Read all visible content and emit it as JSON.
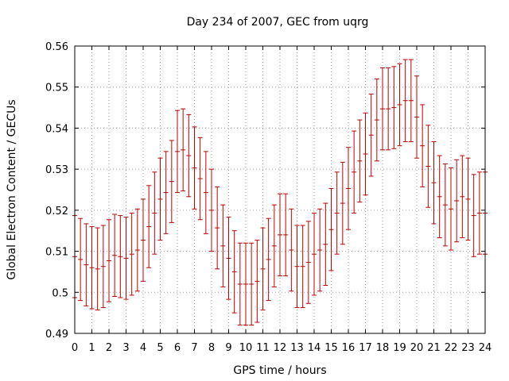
{
  "chart_data": {
    "type": "scatter",
    "title": "Day 234 of 2007, GEC from uqrg",
    "xlabel": "GPS time / hours",
    "ylabel": "Global Electron Content / GECUs",
    "xlim": [
      0,
      24
    ],
    "ylim": [
      0.49,
      0.56
    ],
    "xticks": [
      0,
      1,
      2,
      3,
      4,
      5,
      6,
      7,
      8,
      9,
      10,
      11,
      12,
      13,
      14,
      15,
      16,
      17,
      18,
      19,
      20,
      21,
      22,
      23,
      24
    ],
    "yticks": [
      0.49,
      0.5,
      0.51,
      0.52,
      0.53,
      0.54,
      0.55,
      0.56
    ],
    "xtick_labels": [
      "0",
      "1",
      "2",
      "3",
      "4",
      "5",
      "6",
      "7",
      "8",
      "9",
      "10",
      "11",
      "12",
      "13",
      "14",
      "15",
      "16",
      "17",
      "18",
      "19",
      "20",
      "21",
      "22",
      "23",
      "24"
    ],
    "ytick_labels": [
      "0.49",
      "0.5",
      "0.51",
      "0.52",
      "0.53",
      "0.54",
      "0.55",
      "0.56"
    ],
    "grid": true,
    "colors": {
      "series": "#c00000",
      "grid": "#a0a0a0"
    },
    "series": [
      {
        "error": 0.01,
        "points": [
          [
            0.0,
            0.5087
          ],
          [
            0.333,
            0.508
          ],
          [
            0.667,
            0.5067
          ],
          [
            1.0,
            0.506
          ],
          [
            1.333,
            0.5057
          ],
          [
            1.667,
            0.5063
          ],
          [
            2.0,
            0.5077
          ],
          [
            2.333,
            0.509
          ],
          [
            2.667,
            0.5087
          ],
          [
            3.0,
            0.5083
          ],
          [
            3.333,
            0.5093
          ],
          [
            3.667,
            0.5103
          ],
          [
            4.0,
            0.5127
          ],
          [
            4.333,
            0.516
          ],
          [
            4.667,
            0.5193
          ],
          [
            5.0,
            0.5227
          ],
          [
            5.333,
            0.5243
          ],
          [
            5.667,
            0.527
          ],
          [
            6.0,
            0.5343
          ],
          [
            6.333,
            0.5347
          ],
          [
            6.667,
            0.5333
          ],
          [
            7.0,
            0.5303
          ],
          [
            7.333,
            0.5277
          ],
          [
            7.667,
            0.5243
          ],
          [
            8.0,
            0.52
          ],
          [
            8.333,
            0.5157
          ],
          [
            8.667,
            0.5113
          ],
          [
            9.0,
            0.5083
          ],
          [
            9.333,
            0.505
          ],
          [
            9.667,
            0.502
          ],
          [
            10.0,
            0.502
          ],
          [
            10.333,
            0.502
          ],
          [
            10.667,
            0.5027
          ],
          [
            11.0,
            0.5057
          ],
          [
            11.333,
            0.508
          ],
          [
            11.667,
            0.5113
          ],
          [
            12.0,
            0.514
          ],
          [
            12.333,
            0.514
          ],
          [
            12.667,
            0.5103
          ],
          [
            13.0,
            0.5063
          ],
          [
            13.333,
            0.5063
          ],
          [
            13.667,
            0.5073
          ],
          [
            14.0,
            0.5093
          ],
          [
            14.333,
            0.5103
          ],
          [
            14.667,
            0.5117
          ],
          [
            15.0,
            0.5153
          ],
          [
            15.333,
            0.5193
          ],
          [
            15.667,
            0.5217
          ],
          [
            16.0,
            0.5253
          ],
          [
            16.333,
            0.5293
          ],
          [
            16.667,
            0.532
          ],
          [
            17.0,
            0.5337
          ],
          [
            17.333,
            0.5383
          ],
          [
            17.667,
            0.542
          ],
          [
            18.0,
            0.5447
          ],
          [
            18.333,
            0.5447
          ],
          [
            18.667,
            0.545
          ],
          [
            19.0,
            0.5457
          ],
          [
            19.333,
            0.5467
          ],
          [
            19.667,
            0.5467
          ],
          [
            20.0,
            0.5427
          ],
          [
            20.333,
            0.5357
          ],
          [
            20.667,
            0.5307
          ],
          [
            21.0,
            0.5267
          ],
          [
            21.333,
            0.5233
          ],
          [
            21.667,
            0.5213
          ],
          [
            22.0,
            0.5203
          ],
          [
            22.333,
            0.5223
          ],
          [
            22.667,
            0.5233
          ],
          [
            23.0,
            0.5227
          ],
          [
            23.333,
            0.5187
          ],
          [
            23.667,
            0.5193
          ],
          [
            24.0,
            0.5193
          ]
        ]
      }
    ]
  }
}
